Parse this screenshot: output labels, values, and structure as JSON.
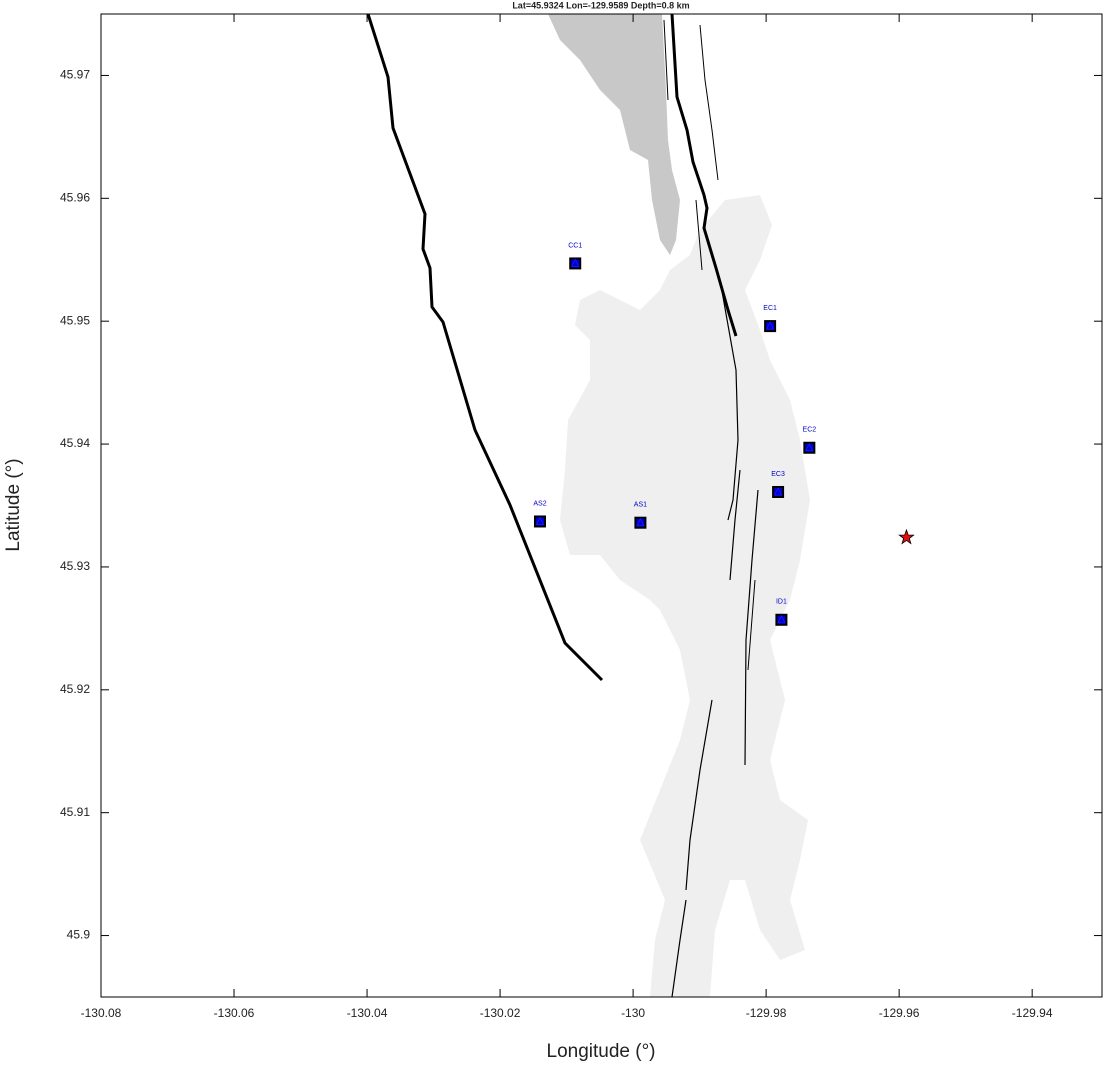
{
  "chart_data": {
    "type": "scatter",
    "title": "Lat=45.9324  Lon=-129.9589  Depth=0.8 km",
    "x_label": "Longitude (°)",
    "y_label": "Latitude (°)",
    "xlim": [
      -130.08,
      -129.9295
    ],
    "ylim": [
      45.895,
      45.975
    ],
    "xticks": [
      -130.08,
      -130.06,
      -130.04,
      -130.02,
      -130,
      -129.98,
      -129.96,
      -129.94
    ],
    "yticks": [
      45.9,
      45.91,
      45.92,
      45.93,
      45.94,
      45.95,
      45.96,
      45.97
    ],
    "grid": false,
    "stations": {
      "color": "#0000cc",
      "labels": [
        "CC1",
        "EC1",
        "EC2",
        "EC3",
        "AS2",
        "AS1",
        "ID1"
      ],
      "x": [
        -130.0087,
        -129.9794,
        -129.9735,
        -129.9782,
        -130.014,
        -129.9989,
        -129.9777
      ],
      "y": [
        45.9547,
        45.9496,
        45.9397,
        45.9361,
        45.9337,
        45.9336,
        45.9257
      ]
    },
    "event": {
      "color": "#e01010",
      "x": -129.9589,
      "y": 45.9324
    }
  }
}
